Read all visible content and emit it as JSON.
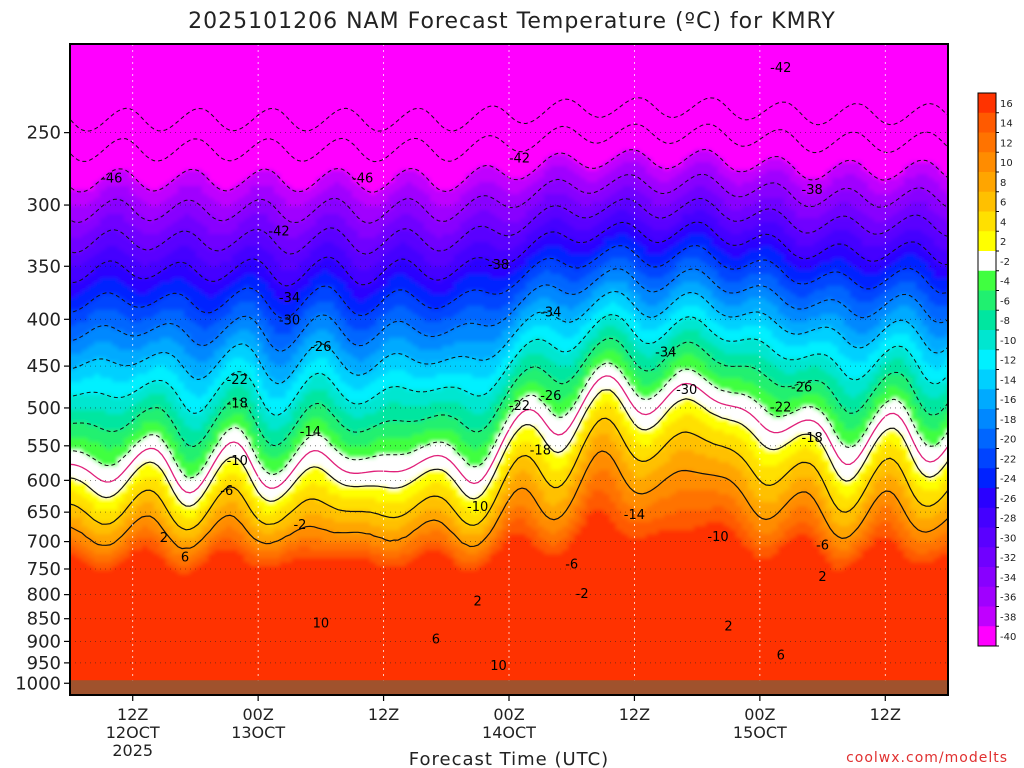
{
  "chart_data": {
    "type": "contour",
    "title": "2025101206 NAM Forecast Temperature (ºC) for KMRY",
    "xlabel": "Forecast Time (UTC)",
    "ylabel": "",
    "y_scale": "log (pressure, inverted)",
    "x_ticks": [
      {
        "hours": 6,
        "label": "12Z",
        "date": "12OCT",
        "year": "2025"
      },
      {
        "hours": 18,
        "label": "00Z",
        "date": "13OCT",
        "year": ""
      },
      {
        "hours": 30,
        "label": "12Z",
        "date": "",
        "year": ""
      },
      {
        "hours": 42,
        "label": "00Z",
        "date": "14OCT",
        "year": ""
      },
      {
        "hours": 54,
        "label": "12Z",
        "date": "",
        "year": ""
      },
      {
        "hours": 66,
        "label": "00Z",
        "date": "15OCT",
        "year": ""
      },
      {
        "hours": 78,
        "label": "12Z",
        "date": "",
        "year": ""
      }
    ],
    "x_range_hours": [
      0,
      84
    ],
    "y_ticks": [
      250,
      300,
      350,
      400,
      450,
      500,
      550,
      600,
      650,
      700,
      750,
      800,
      850,
      900,
      950,
      1000
    ],
    "y_range_hpa": [
      200,
      1030
    ],
    "colorbar": {
      "levels": [
        16,
        14,
        12,
        10,
        8,
        6,
        4,
        2,
        -2,
        -4,
        -6,
        -8,
        -10,
        -12,
        -14,
        -16,
        -18,
        -20,
        -22,
        -24,
        -26,
        -28,
        -30,
        -32,
        -34,
        -36,
        -38,
        -40
      ],
      "colors": [
        "#ff3300",
        "#ff5a00",
        "#ff7300",
        "#ff8c00",
        "#ffa500",
        "#ffc000",
        "#ffe000",
        "#ffff00",
        "#ffffff",
        "#40ff40",
        "#20f070",
        "#00e6a0",
        "#00e6d0",
        "#00f0ff",
        "#00d0ff",
        "#00aaff",
        "#0088ff",
        "#0066ff",
        "#0044ff",
        "#0022ff",
        "#2a00ff",
        "#4400ff",
        "#5a00ff",
        "#7000ff",
        "#8800ff",
        "#a000ff",
        "#c000ff",
        "#ff00ff"
      ]
    },
    "ground_color": "#a0522d",
    "contour_labels": [
      {
        "value": -46,
        "hours": 4,
        "hpa": 280
      },
      {
        "value": -46,
        "hours": 28,
        "hpa": 280
      },
      {
        "value": -42,
        "hours": 20,
        "hpa": 320
      },
      {
        "value": -42,
        "hours": 43,
        "hpa": 266
      },
      {
        "value": -42,
        "hours": 68,
        "hpa": 212
      },
      {
        "value": -38,
        "hours": 41,
        "hpa": 348
      },
      {
        "value": -38,
        "hours": 71,
        "hpa": 288
      },
      {
        "value": -34,
        "hours": 21,
        "hpa": 378
      },
      {
        "value": -34,
        "hours": 46,
        "hpa": 392
      },
      {
        "value": -34,
        "hours": 57,
        "hpa": 434
      },
      {
        "value": -30,
        "hours": 21,
        "hpa": 400
      },
      {
        "value": -30,
        "hours": 59,
        "hpa": 477
      },
      {
        "value": -26,
        "hours": 24,
        "hpa": 428
      },
      {
        "value": -26,
        "hours": 46,
        "hpa": 484
      },
      {
        "value": -26,
        "hours": 70,
        "hpa": 474
      },
      {
        "value": -22,
        "hours": 16,
        "hpa": 465
      },
      {
        "value": -22,
        "hours": 43,
        "hpa": 496
      },
      {
        "value": -22,
        "hours": 68,
        "hpa": 498
      },
      {
        "value": -18,
        "hours": 16,
        "hpa": 493
      },
      {
        "value": -18,
        "hours": 45,
        "hpa": 555
      },
      {
        "value": -18,
        "hours": 71,
        "hpa": 538
      },
      {
        "value": -14,
        "hours": 23,
        "hpa": 530
      },
      {
        "value": -14,
        "hours": 54,
        "hpa": 653
      },
      {
        "value": -10,
        "hours": 16,
        "hpa": 570
      },
      {
        "value": -10,
        "hours": 39,
        "hpa": 640
      },
      {
        "value": -10,
        "hours": 62,
        "hpa": 690
      },
      {
        "value": -6,
        "hours": 15,
        "hpa": 615
      },
      {
        "value": -6,
        "hours": 48,
        "hpa": 740
      },
      {
        "value": -6,
        "hours": 72,
        "hpa": 705
      },
      {
        "value": -2,
        "hours": 22,
        "hpa": 670
      },
      {
        "value": -2,
        "hours": 49,
        "hpa": 797
      },
      {
        "value": 2,
        "hours": 9,
        "hpa": 692
      },
      {
        "value": 2,
        "hours": 39,
        "hpa": 812
      },
      {
        "value": 2,
        "hours": 63,
        "hpa": 865
      },
      {
        "value": 2,
        "hours": 72,
        "hpa": 763
      },
      {
        "value": 6,
        "hours": 11,
        "hpa": 727
      },
      {
        "value": 6,
        "hours": 35,
        "hpa": 893
      },
      {
        "value": 6,
        "hours": 68,
        "hpa": 930
      },
      {
        "value": 10,
        "hours": 24,
        "hpa": 858
      },
      {
        "value": 10,
        "hours": 41,
        "hpa": 955
      }
    ]
  },
  "watermark": "coolwx.com/modelts"
}
